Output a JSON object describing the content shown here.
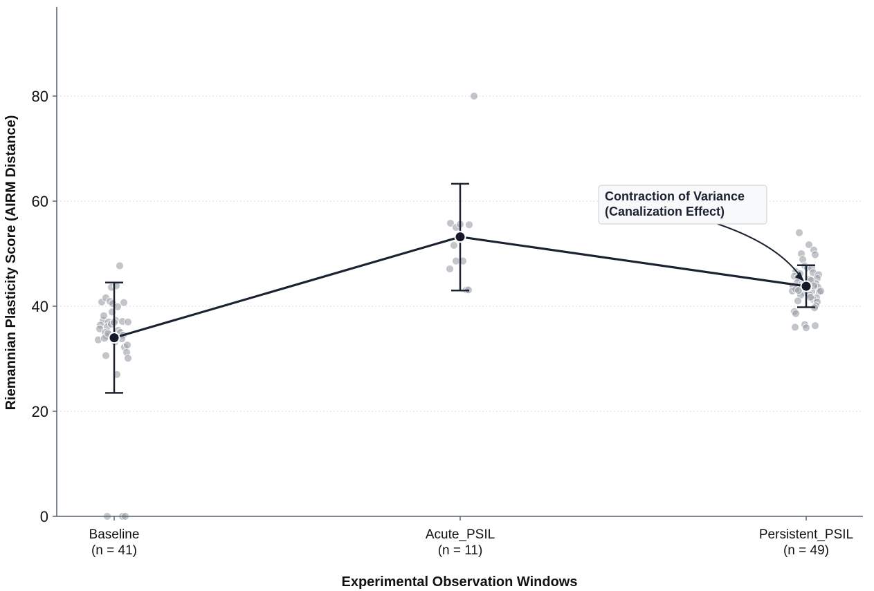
{
  "chart_data": {
    "type": "scatter",
    "title": "",
    "xlabel": "Experimental Observation Windows",
    "ylabel": "Riemannian Plasticity Score (AIRM Distance)",
    "ylim": [
      0,
      95
    ],
    "yticks": [
      0,
      20,
      40,
      60,
      80
    ],
    "grid": "horizontal-dotted",
    "categories": [
      {
        "label": "Baseline",
        "n_label": "(n = 41)"
      },
      {
        "label": "Acute_PSIL",
        "n_label": "(n = 11)"
      },
      {
        "label": "Persistent_PSIL",
        "n_label": "(n = 49)"
      }
    ],
    "mean_line": {
      "means": [
        34.0,
        53.2,
        43.8
      ],
      "err_low": [
        23.5,
        43.0,
        39.8
      ],
      "err_high": [
        44.5,
        63.3,
        47.8
      ]
    },
    "points": [
      [
        {
          "j": -0.18,
          "y": 40.8
        },
        {
          "j": -0.12,
          "y": 41.6
        },
        {
          "j": -0.06,
          "y": 40.9
        },
        {
          "j": -0.02,
          "y": 40.5
        },
        {
          "j": 0.05,
          "y": 39.9
        },
        {
          "j": 0.14,
          "y": 40.7
        },
        {
          "j": -0.04,
          "y": 43.6
        },
        {
          "j": 0.03,
          "y": 43.9
        },
        {
          "j": 0.08,
          "y": 47.7
        },
        {
          "j": -0.16,
          "y": 37.3
        },
        {
          "j": -0.08,
          "y": 37.0
        },
        {
          "j": -0.03,
          "y": 38.9
        },
        {
          "j": 0.02,
          "y": 37.3
        },
        {
          "j": 0.12,
          "y": 37.1
        },
        {
          "j": 0.2,
          "y": 37.0
        },
        {
          "j": -0.2,
          "y": 36.4
        },
        {
          "j": -0.1,
          "y": 36.1
        },
        {
          "j": -0.04,
          "y": 36.6
        },
        {
          "j": 0.0,
          "y": 36.9
        },
        {
          "j": 0.06,
          "y": 35.4
        },
        {
          "j": -0.21,
          "y": 35.7
        },
        {
          "j": -0.13,
          "y": 35.0
        },
        {
          "j": -0.07,
          "y": 34.6
        },
        {
          "j": -0.11,
          "y": 34.3
        },
        {
          "j": 0.09,
          "y": 35.0
        },
        {
          "j": 0.13,
          "y": 34.5
        },
        {
          "j": -0.23,
          "y": 33.6
        },
        {
          "j": -0.14,
          "y": 33.9
        },
        {
          "j": 0.11,
          "y": 33.8
        },
        {
          "j": 0.15,
          "y": 32.2
        },
        {
          "j": 0.19,
          "y": 32.6
        },
        {
          "j": 0.18,
          "y": 31.2
        },
        {
          "j": 0.2,
          "y": 30.1
        },
        {
          "j": -0.12,
          "y": 30.6
        },
        {
          "j": 0.04,
          "y": 27.0
        },
        {
          "j": -0.09,
          "y": 34.8
        },
        {
          "j": 0.01,
          "y": 33.2
        },
        {
          "j": -0.15,
          "y": 38.2
        },
        {
          "j": -0.1,
          "y": 0.0
        },
        {
          "j": 0.12,
          "y": 0.0
        },
        {
          "j": 0.16,
          "y": 0.0
        }
      ],
      [
        {
          "j": 0.2,
          "y": 80.0
        },
        {
          "j": -0.14,
          "y": 55.8
        },
        {
          "j": -0.06,
          "y": 55.0
        },
        {
          "j": 0.0,
          "y": 55.6
        },
        {
          "j": 0.13,
          "y": 55.5
        },
        {
          "j": -0.09,
          "y": 51.6
        },
        {
          "j": -0.06,
          "y": 48.6
        },
        {
          "j": 0.04,
          "y": 48.6
        },
        {
          "j": -0.15,
          "y": 47.1
        },
        {
          "j": 0.09,
          "y": 43.1
        },
        {
          "j": 0.12,
          "y": 43.1
        }
      ],
      [
        {
          "j": -0.1,
          "y": 54.0
        },
        {
          "j": 0.04,
          "y": 51.7
        },
        {
          "j": 0.11,
          "y": 50.7
        },
        {
          "j": -0.07,
          "y": 50.0
        },
        {
          "j": 0.13,
          "y": 49.8
        },
        {
          "j": -0.05,
          "y": 48.9
        },
        {
          "j": -0.02,
          "y": 47.7
        },
        {
          "j": 0.02,
          "y": 47.3
        },
        {
          "j": 0.08,
          "y": 47.2
        },
        {
          "j": -0.15,
          "y": 46.6
        },
        {
          "j": -0.09,
          "y": 46.2
        },
        {
          "j": 0.1,
          "y": 46.4
        },
        {
          "j": 0.18,
          "y": 46.0
        },
        {
          "j": -0.17,
          "y": 45.7
        },
        {
          "j": -0.12,
          "y": 45.4
        },
        {
          "j": 0.05,
          "y": 45.1
        },
        {
          "j": 0.16,
          "y": 45.3
        },
        {
          "j": -0.13,
          "y": 44.5
        },
        {
          "j": -0.06,
          "y": 44.2
        },
        {
          "j": 0.14,
          "y": 44.3
        },
        {
          "j": -0.19,
          "y": 43.8
        },
        {
          "j": -0.1,
          "y": 43.4
        },
        {
          "j": 0.17,
          "y": 43.6
        },
        {
          "j": -0.2,
          "y": 42.9
        },
        {
          "j": -0.15,
          "y": 43.2
        },
        {
          "j": -0.03,
          "y": 42.6
        },
        {
          "j": 0.08,
          "y": 42.8
        },
        {
          "j": 0.19,
          "y": 42.7
        },
        {
          "j": 0.21,
          "y": 42.9
        },
        {
          "j": -0.08,
          "y": 42.1
        },
        {
          "j": 0.05,
          "y": 42.2
        },
        {
          "j": 0.15,
          "y": 41.6
        },
        {
          "j": -0.12,
          "y": 41.0
        },
        {
          "j": 0.1,
          "y": 41.3
        },
        {
          "j": 0.16,
          "y": 40.8
        },
        {
          "j": 0.14,
          "y": 40.1
        },
        {
          "j": -0.17,
          "y": 39.0
        },
        {
          "j": -0.15,
          "y": 38.6
        },
        {
          "j": 0.12,
          "y": 39.7
        },
        {
          "j": -0.02,
          "y": 36.5
        },
        {
          "j": 0.0,
          "y": 35.9
        },
        {
          "j": -0.16,
          "y": 36.0
        },
        {
          "j": 0.13,
          "y": 36.3
        },
        {
          "j": 0.07,
          "y": 44.9
        },
        {
          "j": -0.04,
          "y": 44.0
        },
        {
          "j": 0.03,
          "y": 43.5
        },
        {
          "j": 0.11,
          "y": 43.9
        },
        {
          "j": -0.11,
          "y": 43.0
        },
        {
          "j": 0.06,
          "y": 41.7
        }
      ]
    ],
    "annotation": {
      "lines": [
        "Contraction of Variance",
        "(Canalization Effect)"
      ],
      "target_category": 2,
      "target_y": 43.8
    },
    "colors": {
      "points": "#9aa0a6",
      "line": "#1b2333",
      "marker": "#141a2a",
      "axis": "#55606e",
      "grid": "#d8dde3",
      "annot_border": "#c9d0d8",
      "annot_bg": "#f7f9fb"
    }
  }
}
